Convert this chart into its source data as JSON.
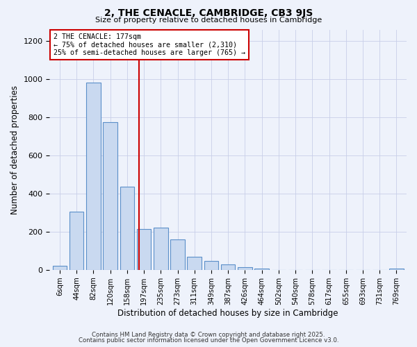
{
  "title": "2, THE CENACLE, CAMBRIDGE, CB3 9JS",
  "subtitle": "Size of property relative to detached houses in Cambridge",
  "xlabel": "Distribution of detached houses by size in Cambridge",
  "ylabel": "Number of detached properties",
  "bin_labels": [
    "6sqm",
    "44sqm",
    "82sqm",
    "120sqm",
    "158sqm",
    "197sqm",
    "235sqm",
    "273sqm",
    "311sqm",
    "349sqm",
    "387sqm",
    "426sqm",
    "464sqm",
    "502sqm",
    "540sqm",
    "578sqm",
    "617sqm",
    "655sqm",
    "693sqm",
    "731sqm",
    "769sqm"
  ],
  "bar_values": [
    20,
    305,
    980,
    775,
    435,
    215,
    220,
    160,
    70,
    45,
    30,
    15,
    5,
    0,
    0,
    0,
    0,
    0,
    0,
    0,
    5
  ],
  "bar_color": "#c9d9f0",
  "bar_edgecolor": "#5b8fc9",
  "vline_x": 4.72,
  "vline_color": "#cc0000",
  "annotation_line1": "2 THE CENACLE: 177sqm",
  "annotation_line2": "← 75% of detached houses are smaller (2,310)",
  "annotation_line3": "25% of semi-detached houses are larger (765) →",
  "annotation_box_edgecolor": "#cc0000",
  "annotation_box_facecolor": "white",
  "ylim": [
    0,
    1260
  ],
  "yticks": [
    0,
    200,
    400,
    600,
    800,
    1000,
    1200
  ],
  "bg_color": "#eef2fb",
  "grid_color": "#c8cfe8",
  "footer1": "Contains HM Land Registry data © Crown copyright and database right 2025.",
  "footer2": "Contains public sector information licensed under the Open Government Licence v3.0."
}
